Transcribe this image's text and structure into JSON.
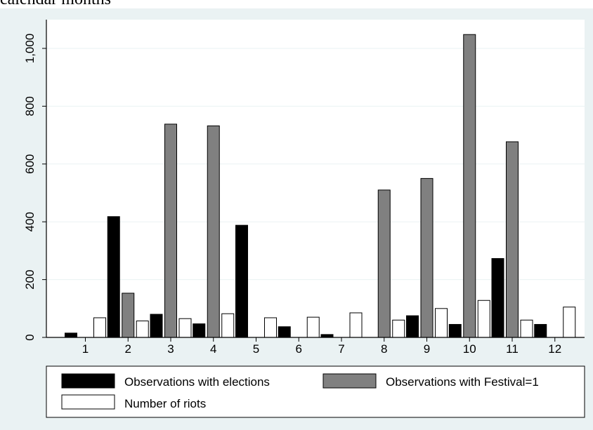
{
  "top_text": "calendar months",
  "colors": {
    "background": "#eaf2f3",
    "plot_bg": "#ffffff",
    "grid": "#eaf2f3",
    "elections": "#000000",
    "festival": "#808080",
    "riots": "#ffffff"
  },
  "chart_data": {
    "type": "bar",
    "title": "",
    "xlabel": "",
    "ylabel": "",
    "categories": [
      "1",
      "2",
      "3",
      "4",
      "5",
      "6",
      "7",
      "8",
      "9",
      "10",
      "11",
      "12"
    ],
    "ylim": [
      0,
      1100
    ],
    "yticks": [
      0,
      200,
      400,
      600,
      800,
      1000
    ],
    "ytick_labels": [
      "0",
      "200",
      "400",
      "600",
      "800",
      "1,000"
    ],
    "grid": true,
    "legend_position": "bottom",
    "series": [
      {
        "name": "Observations with elections",
        "color": "#000000",
        "values": [
          15,
          418,
          80,
          47,
          388,
          37,
          10,
          0,
          75,
          45,
          273,
          45
        ]
      },
      {
        "name": "Observations with Festival=1",
        "color": "#808080",
        "values": [
          0,
          153,
          738,
          732,
          0,
          0,
          0,
          510,
          550,
          1048,
          677,
          0
        ]
      },
      {
        "name": "Number of riots",
        "color": "#ffffff",
        "values": [
          68,
          57,
          65,
          82,
          68,
          70,
          85,
          60,
          100,
          128,
          60,
          105
        ]
      }
    ]
  }
}
